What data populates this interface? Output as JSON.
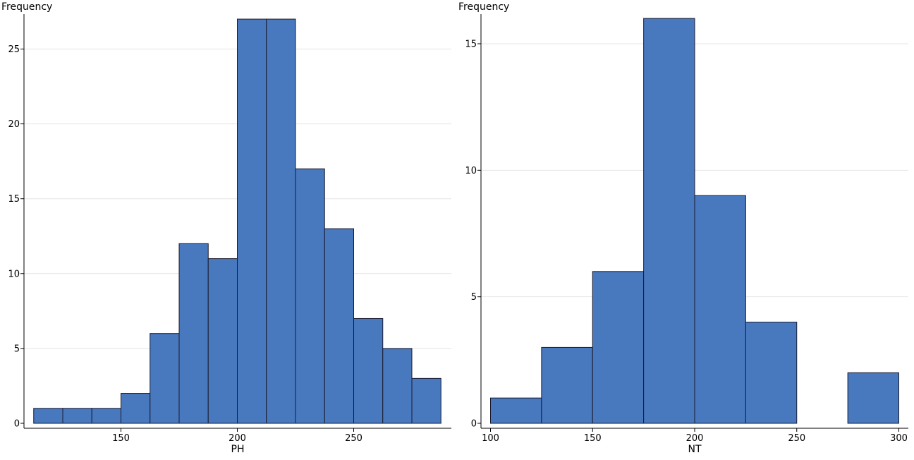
{
  "chart_data": [
    {
      "type": "bar",
      "subtype": "histogram",
      "title": "",
      "xlabel": "PH",
      "ylabel": "Frequency",
      "bin_edges": [
        112.5,
        125,
        137.5,
        150,
        162.5,
        175,
        187.5,
        200,
        212.5,
        225,
        237.5,
        250,
        262.5,
        275,
        287.5
      ],
      "values": [
        1,
        1,
        1,
        2,
        6,
        12,
        11,
        27,
        27,
        17,
        13,
        7,
        5,
        3
      ],
      "xticks": [
        150,
        200,
        250
      ],
      "yticks": [
        0,
        5,
        10,
        15,
        20,
        25
      ],
      "xlim": [
        108,
        291
      ],
      "ylim": [
        0,
        27
      ],
      "grid": "horizontal",
      "bar_color": "#4878be",
      "edge_color": "#1a1a2e"
    },
    {
      "type": "bar",
      "subtype": "histogram",
      "title": "",
      "xlabel": "NT",
      "ylabel": "Frequency",
      "bin_edges": [
        100,
        125,
        150,
        175,
        200,
        225,
        250,
        275,
        300
      ],
      "values": [
        1,
        3,
        6,
        16,
        9,
        4,
        0,
        2
      ],
      "xticks": [
        100,
        150,
        200,
        250,
        300
      ],
      "yticks": [
        0,
        5,
        10,
        15
      ],
      "xlim": [
        97.5,
        305
      ],
      "ylim": [
        0,
        16
      ],
      "grid": "horizontal",
      "bar_color": "#4878be",
      "edge_color": "#1a1a2e"
    }
  ]
}
